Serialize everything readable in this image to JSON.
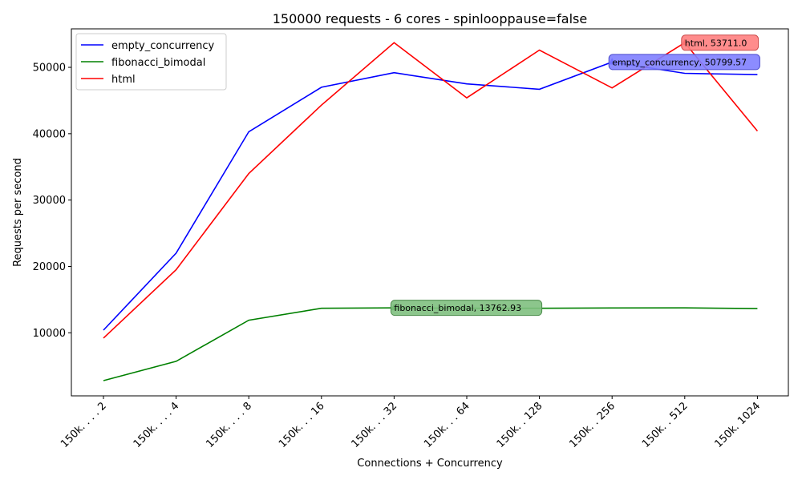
{
  "chart_data": {
    "type": "line",
    "title": "150000 requests - 6 cores - spinlooppause=false",
    "xlabel": "Connections + Concurrency",
    "ylabel": "Requests per second",
    "categories": [
      "150k. . . . 2",
      "150k. . . . 4",
      "150k. . . . 8",
      "150k. . . 16",
      "150k. . . 32",
      "150k. . . 64",
      "150k. . 128",
      "150k. . 256",
      "150k. . 512",
      "150k. 1024"
    ],
    "ylim": [
      500,
      55800
    ],
    "yticks": [
      10000,
      20000,
      30000,
      40000,
      50000
    ],
    "grid": false,
    "legend_position": "top-left",
    "series": [
      {
        "name": "empty_concurrency",
        "color": "#0000ff",
        "values": [
          10400,
          22000,
          40300,
          47000,
          49200,
          47500,
          46700,
          50799.57,
          49100,
          48900
        ]
      },
      {
        "name": "fibonacci_bimodal",
        "color": "#008000",
        "values": [
          2800,
          5700,
          11900,
          13700,
          13762.93,
          13700,
          13700,
          13740,
          13760,
          13650
        ]
      },
      {
        "name": "html",
        "color": "#ff0000",
        "values": [
          9200,
          19500,
          34000,
          44300,
          53711.0,
          45400,
          52600,
          46900,
          53711.0,
          40400
        ]
      }
    ],
    "annotations": [
      {
        "series": "html",
        "index": 8,
        "text": "html, 53711.0",
        "bg": "#ff8080",
        "edge": "#cc4c4c"
      },
      {
        "series": "empty_concurrency",
        "index": 7,
        "text": "empty_concurrency, 50799.57",
        "bg": "#8080ff",
        "edge": "#4c4ccc"
      },
      {
        "series": "fibonacci_bimodal",
        "index": 4,
        "text": "fibonacci_bimodal, 13762.93",
        "bg": "#80c080",
        "edge": "#4c8c4c"
      }
    ]
  }
}
